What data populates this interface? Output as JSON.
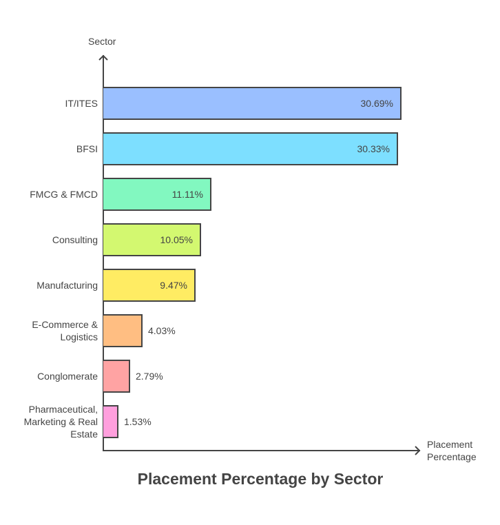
{
  "chart_data": {
    "type": "bar",
    "orientation": "horizontal",
    "title": "Placement Percentage by Sector",
    "xlabel": "Placement Percentage",
    "ylabel": "Sector",
    "categories": [
      "IT/ITES",
      "BFSI",
      "FMCG & FMCD",
      "Consulting",
      "Manufacturing",
      "E-Commerce & Logistics",
      "Conglomerate",
      "Pharmaceutical, Marketing & Real Estate"
    ],
    "values": [
      30.69,
      30.33,
      11.11,
      10.05,
      9.47,
      4.03,
      2.79,
      1.53
    ],
    "value_labels": [
      "30.69%",
      "30.33%",
      "11.11%",
      "10.05%",
      "9.47%",
      "4.03%",
      "2.79%",
      "1.53%"
    ],
    "colors": [
      "#9ABFFF",
      "#7DDFFF",
      "#82F8C0",
      "#D3F870",
      "#FFEC63",
      "#FFBE82",
      "#FFA3A3",
      "#FF9FDD"
    ],
    "grid": false,
    "legend": "none"
  },
  "labels": {
    "y_axis": "Sector",
    "x_axis_line1": "Placement",
    "x_axis_line2": "Percentage",
    "title": "Placement Percentage by Sector",
    "categories": [
      [
        "IT/ITES"
      ],
      [
        "BFSI"
      ],
      [
        "FMCG & FMCD"
      ],
      [
        "Consulting"
      ],
      [
        "Manufacturing"
      ],
      [
        "E-Commerce &",
        "Logistics"
      ],
      [
        "Conglomerate"
      ],
      [
        "Pharmaceutical,",
        "Marketing & Real",
        "Estate"
      ]
    ]
  }
}
